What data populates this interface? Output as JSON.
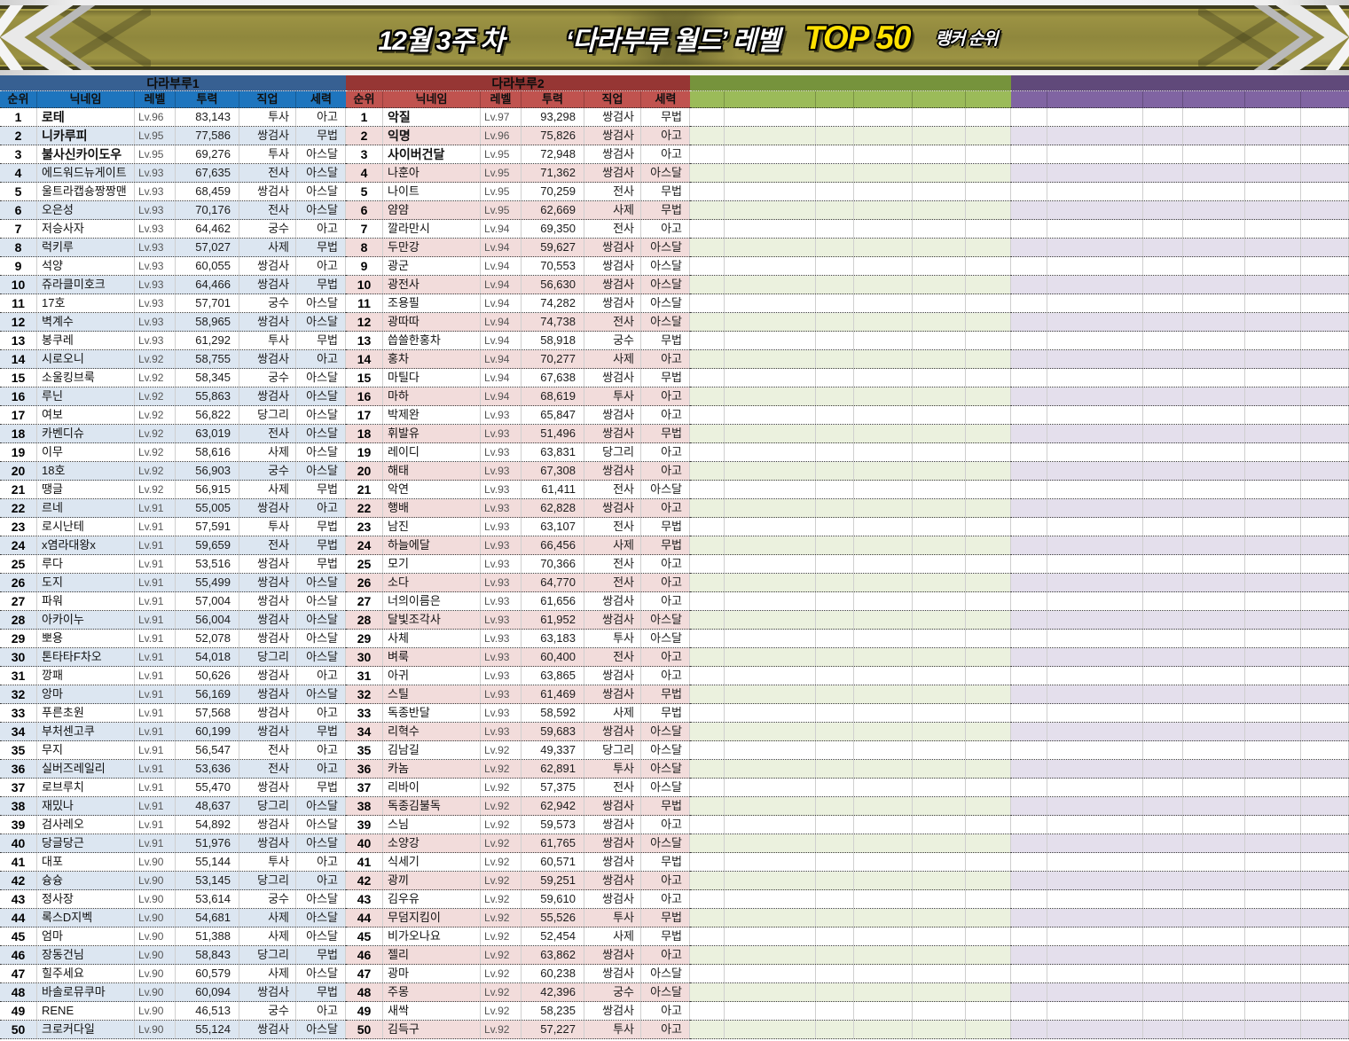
{
  "banner": {
    "week": "12월 3주 차",
    "title": "‘다라부루 월드’ 레벨",
    "top": "TOP 50",
    "suffix": "랭커 순위",
    "top_color": "#ffe100"
  },
  "columns": [
    "순위",
    "닉네임",
    "레벨",
    "투력",
    "직업",
    "세력"
  ],
  "row_count": 50,
  "tables": [
    {
      "name": "다라부루1",
      "show_columns": true,
      "title_bg": "#376092",
      "header_bg": "#1e75be",
      "stripe": "#dce6f1",
      "rows": [
        [
          "1",
          "로테",
          "Lv.96",
          "83,143",
          "투사",
          "아고"
        ],
        [
          "2",
          "니카루피",
          "Lv.95",
          "77,586",
          "쌍검사",
          "무법"
        ],
        [
          "3",
          "불사신카이도우",
          "Lv.95",
          "69,276",
          "투사",
          "아스달"
        ],
        [
          "4",
          "에드워드뉴게이트",
          "Lv.93",
          "67,635",
          "전사",
          "아스달"
        ],
        [
          "5",
          "울트라캡숑짱짱맨",
          "Lv.93",
          "68,459",
          "쌍검사",
          "아스달"
        ],
        [
          "6",
          "오은성",
          "Lv.93",
          "70,176",
          "전사",
          "아스달"
        ],
        [
          "7",
          "저승사자",
          "Lv.93",
          "64,462",
          "궁수",
          "아고"
        ],
        [
          "8",
          "럭키루",
          "Lv.93",
          "57,027",
          "사제",
          "무법"
        ],
        [
          "9",
          "석양",
          "Lv.93",
          "60,055",
          "쌍검사",
          "아고"
        ],
        [
          "10",
          "쥬라클미호크",
          "Lv.93",
          "64,466",
          "쌍검사",
          "무법"
        ],
        [
          "11",
          "17호",
          "Lv.93",
          "57,701",
          "궁수",
          "아스달"
        ],
        [
          "12",
          "벽계수",
          "Lv.93",
          "58,965",
          "쌍검사",
          "아스달"
        ],
        [
          "13",
          "봉쿠레",
          "Lv.93",
          "61,292",
          "투사",
          "무법"
        ],
        [
          "14",
          "시로오니",
          "Lv.92",
          "58,755",
          "쌍검사",
          "아고"
        ],
        [
          "15",
          "소울킹브룩",
          "Lv.92",
          "58,345",
          "궁수",
          "아스달"
        ],
        [
          "16",
          "루닌",
          "Lv.92",
          "55,863",
          "쌍검사",
          "아스달"
        ],
        [
          "17",
          "여보",
          "Lv.92",
          "56,822",
          "당그리",
          "아스달"
        ],
        [
          "18",
          "카벤디슈",
          "Lv.92",
          "63,019",
          "전사",
          "아스달"
        ],
        [
          "19",
          "이무",
          "Lv.92",
          "58,616",
          "사제",
          "아스달"
        ],
        [
          "20",
          "18호",
          "Lv.92",
          "56,903",
          "궁수",
          "아스달"
        ],
        [
          "21",
          "땡글",
          "Lv.92",
          "56,915",
          "사제",
          "무법"
        ],
        [
          "22",
          "르네",
          "Lv.91",
          "55,005",
          "쌍검사",
          "아고"
        ],
        [
          "23",
          "로시난테",
          "Lv.91",
          "57,591",
          "투사",
          "무법"
        ],
        [
          "24",
          "x염라대왕x",
          "Lv.91",
          "59,659",
          "전사",
          "무법"
        ],
        [
          "25",
          "루다",
          "Lv.91",
          "53,516",
          "쌍검사",
          "무법"
        ],
        [
          "26",
          "도지",
          "Lv.91",
          "55,499",
          "쌍검사",
          "아스달"
        ],
        [
          "27",
          "파워",
          "Lv.91",
          "57,004",
          "쌍검사",
          "아스달"
        ],
        [
          "28",
          "아카이누",
          "Lv.91",
          "56,004",
          "쌍검사",
          "아스달"
        ],
        [
          "29",
          "뽀용",
          "Lv.91",
          "52,078",
          "쌍검사",
          "아스달"
        ],
        [
          "30",
          "톤타타F차오",
          "Lv.91",
          "54,018",
          "당그리",
          "아스달"
        ],
        [
          "31",
          "깡패",
          "Lv.91",
          "50,626",
          "쌍검사",
          "아고"
        ],
        [
          "32",
          "앙마",
          "Lv.91",
          "56,169",
          "쌍검사",
          "아스달"
        ],
        [
          "33",
          "푸른초원",
          "Lv.91",
          "57,568",
          "쌍검사",
          "아고"
        ],
        [
          "34",
          "부처센고쿠",
          "Lv.91",
          "60,199",
          "쌍검사",
          "무법"
        ],
        [
          "35",
          "무지",
          "Lv.91",
          "56,547",
          "전사",
          "아고"
        ],
        [
          "36",
          "실버즈레일리",
          "Lv.91",
          "53,636",
          "전사",
          "아고"
        ],
        [
          "37",
          "로브루치",
          "Lv.91",
          "55,470",
          "쌍검사",
          "무법"
        ],
        [
          "38",
          "재밌나",
          "Lv.91",
          "48,637",
          "당그리",
          "아스달"
        ],
        [
          "39",
          "검사레오",
          "Lv.91",
          "54,892",
          "쌍검사",
          "아스달"
        ],
        [
          "40",
          "당글당근",
          "Lv.91",
          "51,976",
          "쌍검사",
          "아스달"
        ],
        [
          "41",
          "대포",
          "Lv.90",
          "55,144",
          "투사",
          "아고"
        ],
        [
          "42",
          "슝슝",
          "Lv.90",
          "53,145",
          "당그리",
          "아고"
        ],
        [
          "43",
          "정사장",
          "Lv.90",
          "53,614",
          "궁수",
          "아스달"
        ],
        [
          "44",
          "록스D지벡",
          "Lv.90",
          "54,681",
          "사제",
          "아스달"
        ],
        [
          "45",
          "엄마",
          "Lv.90",
          "51,388",
          "사제",
          "아스달"
        ],
        [
          "46",
          "장동건님",
          "Lv.90",
          "58,843",
          "당그리",
          "무법"
        ],
        [
          "47",
          "힐주세요",
          "Lv.90",
          "60,579",
          "사제",
          "아스달"
        ],
        [
          "48",
          "바솔로뮤쿠마",
          "Lv.90",
          "60,094",
          "쌍검사",
          "무법"
        ],
        [
          "49",
          "RENE",
          "Lv.90",
          "46,513",
          "궁수",
          "아고"
        ],
        [
          "50",
          "크로커다일",
          "Lv.90",
          "55,124",
          "쌍검사",
          "아스달"
        ]
      ]
    },
    {
      "name": "다라부루2",
      "show_columns": true,
      "title_bg": "#963634",
      "header_bg": "#c0534f",
      "stripe": "#f2dcdb",
      "rows": [
        [
          "1",
          "악질",
          "Lv.97",
          "93,298",
          "쌍검사",
          "무법"
        ],
        [
          "2",
          "익명",
          "Lv.96",
          "75,826",
          "쌍검사",
          "아고"
        ],
        [
          "3",
          "사이버건달",
          "Lv.95",
          "72,948",
          "쌍검사",
          "아고"
        ],
        [
          "4",
          "나훈아",
          "Lv.95",
          "71,362",
          "쌍검사",
          "아스달"
        ],
        [
          "5",
          "나이트",
          "Lv.95",
          "70,259",
          "전사",
          "무법"
        ],
        [
          "6",
          "얌얌",
          "Lv.95",
          "62,669",
          "사제",
          "무법"
        ],
        [
          "7",
          "깔라만시",
          "Lv.94",
          "69,350",
          "전사",
          "아고"
        ],
        [
          "8",
          "두만강",
          "Lv.94",
          "59,627",
          "쌍검사",
          "아스달"
        ],
        [
          "9",
          "광군",
          "Lv.94",
          "70,553",
          "쌍검사",
          "아스달"
        ],
        [
          "10",
          "광전사",
          "Lv.94",
          "56,630",
          "쌍검사",
          "아스달"
        ],
        [
          "11",
          "조용필",
          "Lv.94",
          "74,282",
          "쌍검사",
          "아스달"
        ],
        [
          "12",
          "광따따",
          "Lv.94",
          "74,738",
          "전사",
          "아스달"
        ],
        [
          "13",
          "씁쓸한홍차",
          "Lv.94",
          "58,918",
          "궁수",
          "무법"
        ],
        [
          "14",
          "홍차",
          "Lv.94",
          "70,277",
          "사제",
          "아고"
        ],
        [
          "15",
          "마틸다",
          "Lv.94",
          "67,638",
          "쌍검사",
          "무법"
        ],
        [
          "16",
          "마하",
          "Lv.94",
          "68,619",
          "투사",
          "아고"
        ],
        [
          "17",
          "박제완",
          "Lv.93",
          "65,847",
          "쌍검사",
          "아고"
        ],
        [
          "18",
          "휘발유",
          "Lv.93",
          "51,496",
          "쌍검사",
          "무법"
        ],
        [
          "19",
          "레이디",
          "Lv.93",
          "63,831",
          "당그리",
          "아고"
        ],
        [
          "20",
          "해태",
          "Lv.93",
          "67,308",
          "쌍검사",
          "아고"
        ],
        [
          "21",
          "악연",
          "Lv.93",
          "61,411",
          "전사",
          "아스달"
        ],
        [
          "22",
          "행배",
          "Lv.93",
          "62,828",
          "쌍검사",
          "아고"
        ],
        [
          "23",
          "남진",
          "Lv.93",
          "63,107",
          "전사",
          "무법"
        ],
        [
          "24",
          "하늘에달",
          "Lv.93",
          "66,456",
          "사제",
          "무법"
        ],
        [
          "25",
          "모기",
          "Lv.93",
          "70,366",
          "전사",
          "아고"
        ],
        [
          "26",
          "소다",
          "Lv.93",
          "64,770",
          "전사",
          "아고"
        ],
        [
          "27",
          "너의이름은",
          "Lv.93",
          "61,656",
          "쌍검사",
          "아고"
        ],
        [
          "28",
          "달빛조각사",
          "Lv.93",
          "61,952",
          "쌍검사",
          "아스달"
        ],
        [
          "29",
          "사체",
          "Lv.93",
          "63,183",
          "투사",
          "아스달"
        ],
        [
          "30",
          "벼룩",
          "Lv.93",
          "60,400",
          "전사",
          "아고"
        ],
        [
          "31",
          "아귀",
          "Lv.93",
          "63,865",
          "쌍검사",
          "아고"
        ],
        [
          "32",
          "스틸",
          "Lv.93",
          "61,469",
          "쌍검사",
          "무법"
        ],
        [
          "33",
          "독종반달",
          "Lv.93",
          "58,592",
          "사제",
          "무법"
        ],
        [
          "34",
          "리혁수",
          "Lv.93",
          "59,683",
          "쌍검사",
          "아스달"
        ],
        [
          "35",
          "김남길",
          "Lv.92",
          "49,337",
          "당그리",
          "아스달"
        ],
        [
          "36",
          "카놈",
          "Lv.92",
          "62,891",
          "투사",
          "아스달"
        ],
        [
          "37",
          "리바이",
          "Lv.92",
          "57,375",
          "전사",
          "아스달"
        ],
        [
          "38",
          "독종김불독",
          "Lv.92",
          "62,942",
          "쌍검사",
          "무법"
        ],
        [
          "39",
          "스님",
          "Lv.92",
          "59,573",
          "쌍검사",
          "아고"
        ],
        [
          "40",
          "소양강",
          "Lv.92",
          "61,765",
          "쌍검사",
          "아스달"
        ],
        [
          "41",
          "식세기",
          "Lv.92",
          "60,571",
          "쌍검사",
          "무법"
        ],
        [
          "42",
          "광끼",
          "Lv.92",
          "59,251",
          "쌍검사",
          "아고"
        ],
        [
          "43",
          "김우유",
          "Lv.92",
          "59,610",
          "쌍검사",
          "아고"
        ],
        [
          "44",
          "무덤지킴이",
          "Lv.92",
          "55,526",
          "투사",
          "무법"
        ],
        [
          "45",
          "비가오나요",
          "Lv.92",
          "52,454",
          "사제",
          "무법"
        ],
        [
          "46",
          "젤리",
          "Lv.92",
          "63,862",
          "쌍검사",
          "아고"
        ],
        [
          "47",
          "광마",
          "Lv.92",
          "60,238",
          "쌍검사",
          "아스달"
        ],
        [
          "48",
          "주몽",
          "Lv.92",
          "42,396",
          "궁수",
          "아스달"
        ],
        [
          "49",
          "새싹",
          "Lv.92",
          "58,235",
          "쌍검사",
          "아고"
        ],
        [
          "50",
          "김득구",
          "Lv.92",
          "57,227",
          "투사",
          "아고"
        ]
      ]
    },
    {
      "name": "",
      "show_columns": false,
      "title_bg": "#76933c",
      "header_bg": "#9bbb59",
      "stripe": "#ebf1de",
      "rows": []
    },
    {
      "name": "",
      "show_columns": false,
      "title_bg": "#60497a",
      "header_bg": "#8064a2",
      "stripe": "#e4dfec",
      "rows": []
    }
  ]
}
